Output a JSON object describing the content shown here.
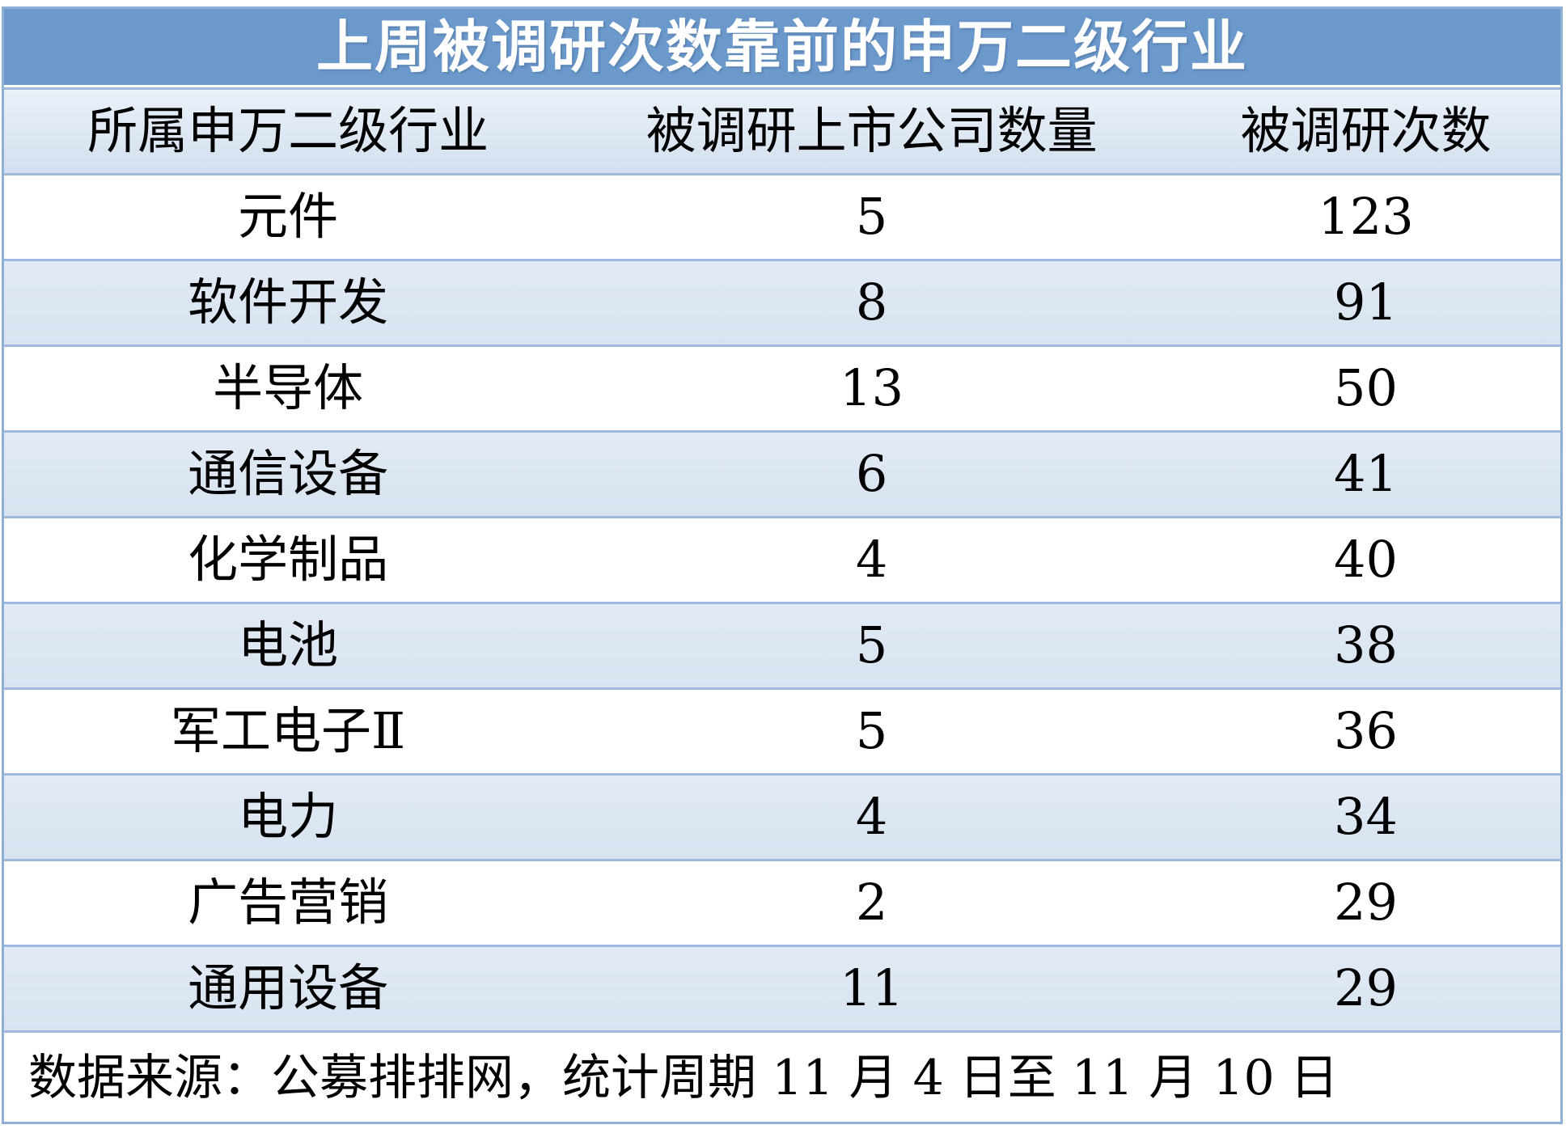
{
  "table": {
    "title": "上周被调研次数靠前的申万二级行业",
    "columns": {
      "industry": "所属申万二级行业",
      "companies": "被调研上市公司数量",
      "times": "被调研次数"
    },
    "rows": [
      {
        "industry": "元件",
        "companies": "5",
        "times": "123"
      },
      {
        "industry": "软件开发",
        "companies": "8",
        "times": "91"
      },
      {
        "industry": "半导体",
        "companies": "13",
        "times": "50"
      },
      {
        "industry": "通信设备",
        "companies": "6",
        "times": "41"
      },
      {
        "industry": "化学制品",
        "companies": "4",
        "times": "40"
      },
      {
        "industry": "电池",
        "companies": "5",
        "times": "38"
      },
      {
        "industry": "军工电子Ⅱ",
        "companies": "5",
        "times": "36"
      },
      {
        "industry": "电力",
        "companies": "4",
        "times": "34"
      },
      {
        "industry": "广告营销",
        "companies": "2",
        "times": "29"
      },
      {
        "industry": "通用设备",
        "companies": "11",
        "times": "29"
      }
    ],
    "footer": "数据来源：公募排排网，统计周期 11 月 4 日至 11 月 10 日"
  },
  "colors": {
    "title_bar_blue": "#6B99CC",
    "shaded_row_blue": "#DCE6F2",
    "border_blue": "#95B3D7",
    "title_text": "#FFFFFF",
    "body_text": "#000000"
  },
  "chart_data": {
    "type": "table",
    "title": "上周被调研次数靠前的申万二级行业",
    "columns": [
      "所属申万二级行业",
      "被调研上市公司数量",
      "被调研次数"
    ],
    "rows": [
      [
        "元件",
        5,
        123
      ],
      [
        "软件开发",
        8,
        91
      ],
      [
        "半导体",
        13,
        50
      ],
      [
        "通信设备",
        6,
        41
      ],
      [
        "化学制品",
        4,
        40
      ],
      [
        "电池",
        5,
        38
      ],
      [
        "军工电子Ⅱ",
        5,
        36
      ],
      [
        "电力",
        4,
        34
      ],
      [
        "广告营销",
        2,
        29
      ],
      [
        "通用设备",
        11,
        29
      ]
    ],
    "note": "数据来源：公募排排网，统计周期 11 月 4 日至 11 月 10 日",
    "layout": "alternating row shading (white / light blue), all values centered, source note left-aligned"
  }
}
